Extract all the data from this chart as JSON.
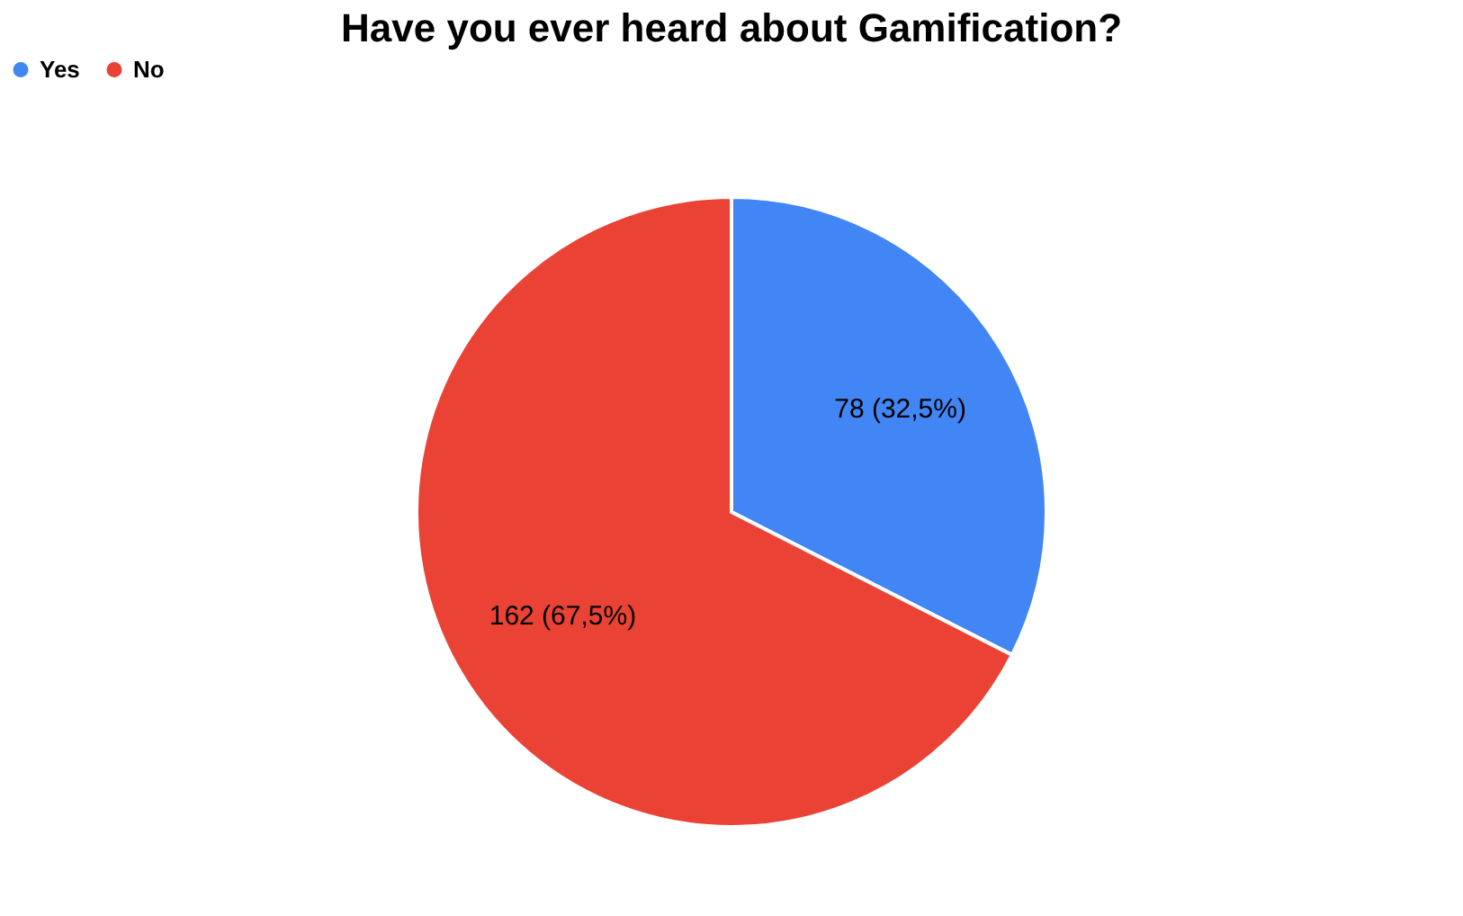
{
  "chart_data": {
    "type": "pie",
    "title": "Have you ever heard about Gamification?",
    "categories": [
      "Yes",
      "No"
    ],
    "values": [
      78,
      162
    ],
    "colors": [
      "#4285f4",
      "#ea4335"
    ],
    "value_labels": [
      "78 (32,5%)",
      "162 (67,5%)"
    ],
    "legend": "top"
  }
}
